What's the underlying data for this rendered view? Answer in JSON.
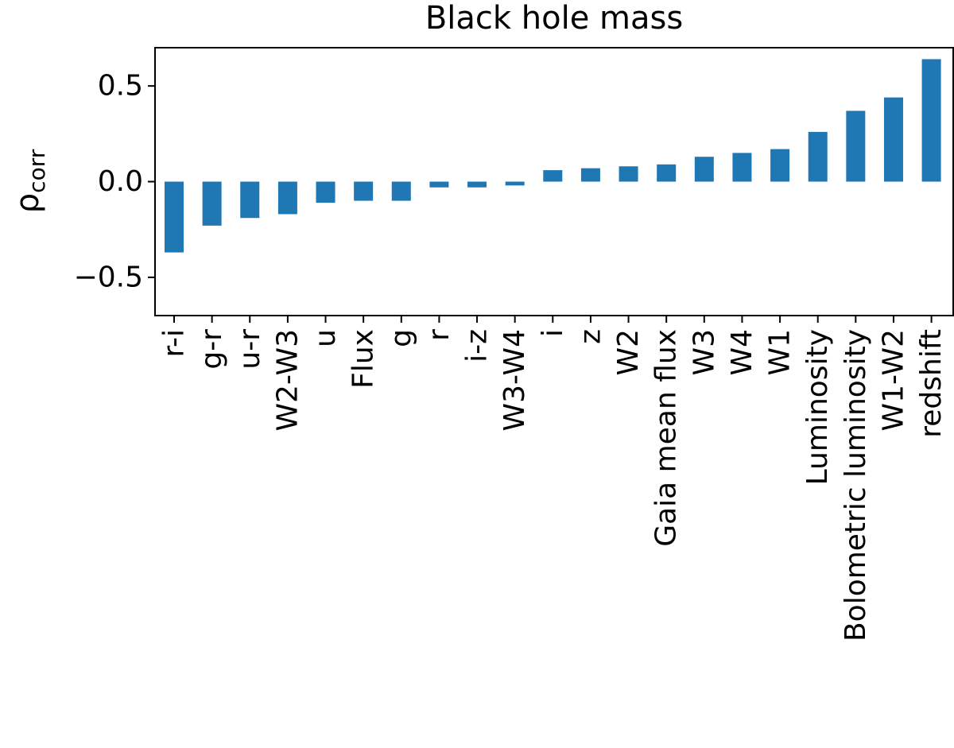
{
  "chart_data": {
    "type": "bar",
    "title": "Black hole mass",
    "xlabel": "",
    "ylabel": {
      "symbol": "ρ",
      "subscript": "corr"
    },
    "ylim": [
      -0.7,
      0.7
    ],
    "yticks": [
      0.5,
      0.0,
      -0.5
    ],
    "ytick_labels": [
      "0.5",
      "0.0",
      "−0.5"
    ],
    "grid": false,
    "legend": "none",
    "bar_color": "#1f77b4",
    "categories": [
      "r-i",
      "g-r",
      "u-r",
      "W2-W3",
      "u",
      "Flux",
      "g",
      "r",
      "i-z",
      "W3-W4",
      "i",
      "z",
      "W2",
      "Gaia mean flux",
      "W3",
      "W4",
      "W1",
      "Luminosity",
      "Bolometric luminosity",
      "W1-W2",
      "redshift"
    ],
    "values": [
      -0.37,
      -0.23,
      -0.19,
      -0.17,
      -0.11,
      -0.1,
      -0.1,
      -0.03,
      -0.03,
      -0.02,
      0.06,
      0.07,
      0.08,
      0.09,
      0.13,
      0.15,
      0.17,
      0.26,
      0.37,
      0.44,
      0.64
    ]
  }
}
